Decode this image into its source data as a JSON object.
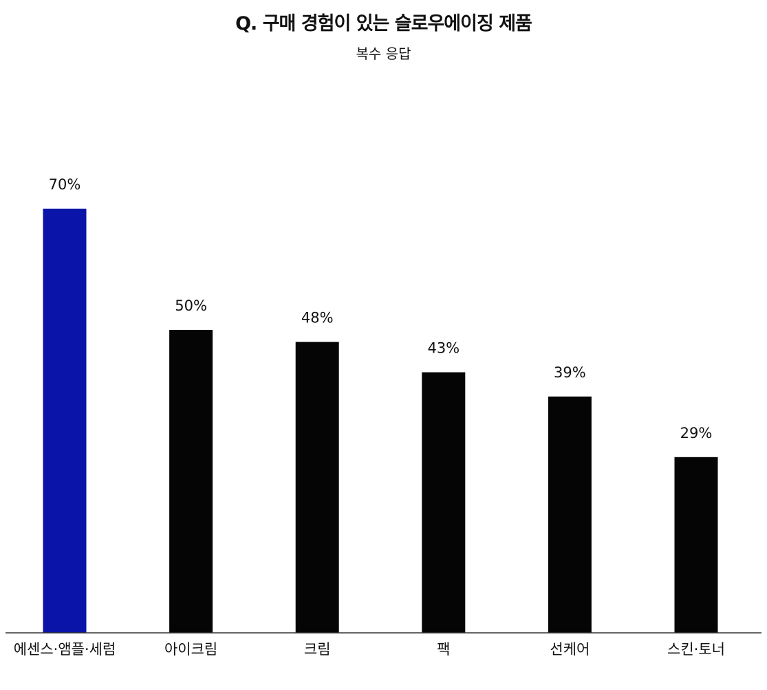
{
  "chart_data": {
    "type": "bar",
    "title": "Q. 구매 경험이 있는 슬로우에이징 제품",
    "subtitle": "복수 응답",
    "categories": [
      "에센스·앰플·세럼",
      "아이크림",
      "크림",
      "팩",
      "선케어",
      "스킨·토너"
    ],
    "values": [
      70,
      50,
      48,
      43,
      39,
      29
    ],
    "value_labels": [
      "70%",
      "50%",
      "48%",
      "43%",
      "39%",
      "29%"
    ],
    "unit": "%",
    "ylim": [
      0,
      100
    ],
    "grid": false,
    "legend": "none",
    "highlight_index": 0,
    "colors": {
      "highlight": "#0a14a8",
      "bar": "#050505",
      "axis": "#333333",
      "text": "#111111"
    }
  }
}
